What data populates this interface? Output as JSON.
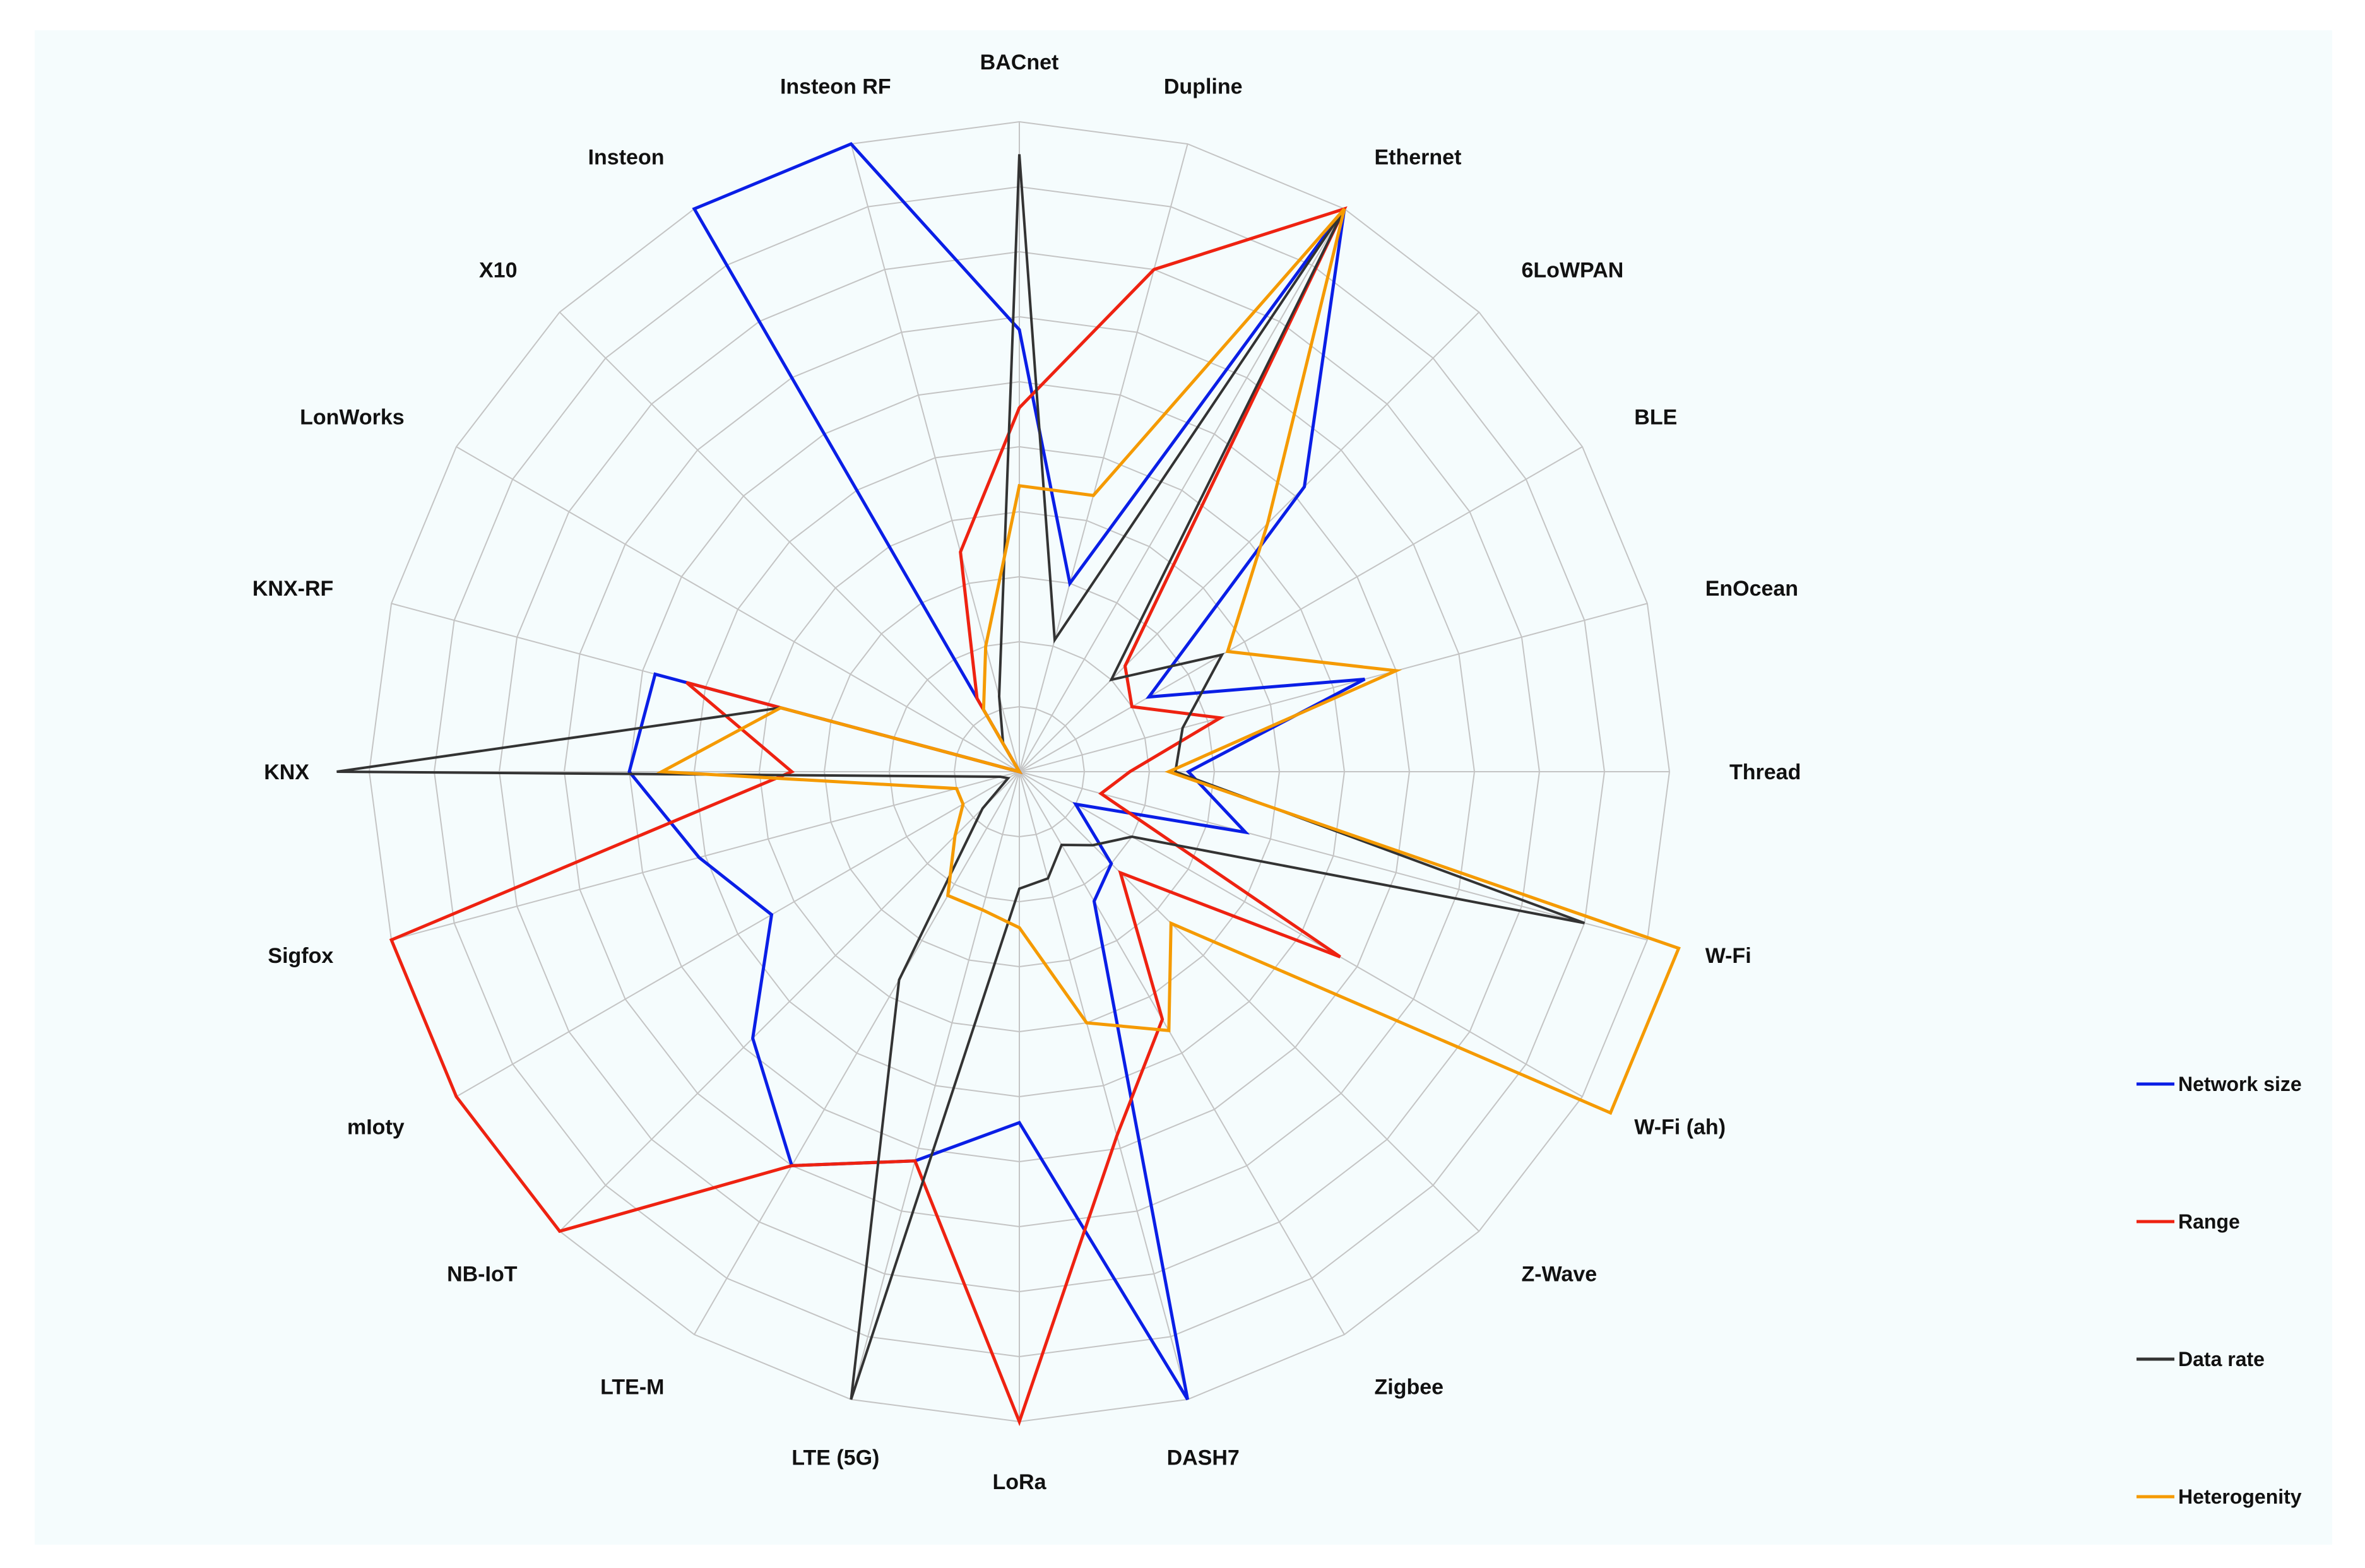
{
  "chart_data": {
    "type": "radar",
    "grid": true,
    "grid_levels": 10,
    "rlim": [
      0,
      10
    ],
    "legend_position": "right",
    "categories": [
      "BACnet",
      "Dupline",
      "Ethernet",
      "6LoWPAN",
      "BLE",
      "EnOcean",
      "Thread",
      "W-Fi",
      "W-Fi (ah)",
      "Z-Wave",
      "Zigbee",
      "DASH7",
      "LoRa",
      "LTE (5G)",
      "LTE-M",
      "NB-IoT",
      "mIoty",
      "Sigfox",
      "KNX",
      "KNX-RF",
      "LonWorks",
      "X10",
      "Insteon",
      "Insteon RF"
    ],
    "series": [
      {
        "name": "Network size",
        "color": "#0a1ee6",
        "values": [
          6.8,
          3.0,
          10.0,
          6.2,
          2.3,
          5.5,
          2.6,
          3.6,
          1.0,
          2.0,
          2.3,
          10.0,
          5.4,
          6.2,
          7.0,
          5.8,
          4.4,
          5.1,
          6.0,
          5.8,
          0.0,
          0.0,
          10.0,
          10.0
        ]
      },
      {
        "name": "Range",
        "color": "#ee2211",
        "values": [
          5.6,
          8.0,
          10.0,
          2.3,
          2.0,
          3.2,
          1.7,
          1.3,
          5.7,
          2.2,
          4.4,
          5.8,
          10.0,
          6.2,
          7.0,
          10.0,
          10.0,
          10.0,
          3.5,
          5.3,
          0.0,
          0.0,
          1.3,
          3.5
        ]
      },
      {
        "name": "Data rate",
        "color": "#333333",
        "values": [
          9.5,
          2.1,
          10.0,
          2.0,
          3.6,
          2.6,
          2.4,
          9.0,
          2.0,
          1.6,
          1.3,
          1.7,
          1.8,
          10.0,
          3.7,
          0.8,
          0.2,
          0.3,
          10.5,
          3.8,
          0.0,
          0.0,
          0.5,
          1.2
        ]
      },
      {
        "name": "Heterogenity",
        "color": "#f59a00",
        "values": [
          4.4,
          4.4,
          10.0,
          5.4,
          3.7,
          6.0,
          2.3,
          10.5,
          10.5,
          3.3,
          4.6,
          4.0,
          2.4,
          2.2,
          2.2,
          1.4,
          1.0,
          1.0,
          5.5,
          3.8,
          0.0,
          0.0,
          1.1,
          2.0
        ]
      }
    ]
  }
}
